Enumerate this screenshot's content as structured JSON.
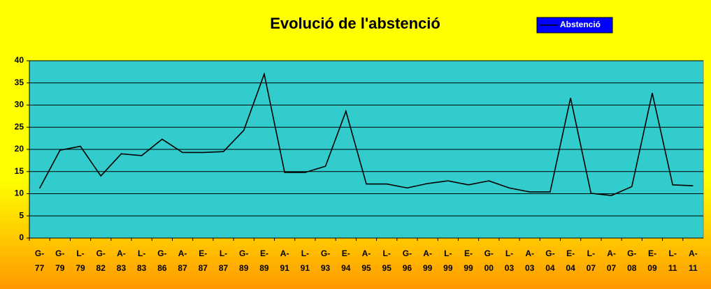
{
  "chart_data": {
    "type": "line",
    "title": "Evolució de l'abstenció",
    "categories": [
      "G-77",
      "G-79",
      "L-79",
      "G-82",
      "A-83",
      "L-83",
      "G-86",
      "A-87",
      "E-87",
      "L-87",
      "G-89",
      "E-89",
      "A-91",
      "L-91",
      "G-93",
      "E-94",
      "A-95",
      "L-95",
      "G-96",
      "A-99",
      "L-99",
      "E-99",
      "G-00",
      "L-03",
      "A-03",
      "G-04",
      "E-04",
      "L-07",
      "A-07",
      "G-08",
      "E-09",
      "L-11",
      "A-11"
    ],
    "series": [
      {
        "name": "Abstenció",
        "color": "#000000",
        "values": [
          11.2,
          19.8,
          20.7,
          14,
          19,
          18.6,
          22.3,
          19.3,
          19.3,
          19.5,
          24.3,
          37,
          14.8,
          14.8,
          16.2,
          28.6,
          12.2,
          12.2,
          11.3,
          12.3,
          12.9,
          12,
          12.9,
          11.3,
          10.4,
          10.4,
          31.6,
          10.1,
          9.6,
          11.6,
          32.7,
          12,
          11.8
        ]
      }
    ],
    "ylim": [
      0,
      40
    ],
    "yticks": [
      0,
      5,
      10,
      15,
      20,
      25,
      30,
      35,
      40
    ],
    "grid": true
  }
}
